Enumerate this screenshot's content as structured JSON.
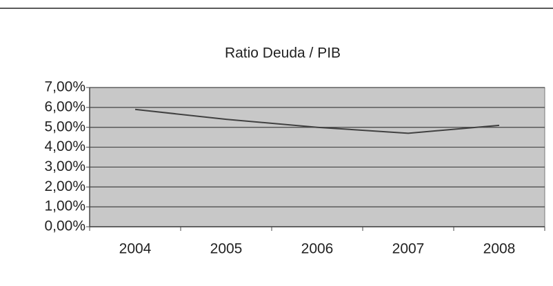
{
  "chart_data": {
    "type": "line",
    "title": "Ratio Deuda / PIB",
    "categories": [
      "2004",
      "2005",
      "2006",
      "2007",
      "2008"
    ],
    "values": [
      5.9,
      5.4,
      5.0,
      4.7,
      5.1
    ],
    "color": "#404040",
    "ylim": [
      0,
      7
    ],
    "yticks": [
      {
        "value": 0,
        "label": "0,00%"
      },
      {
        "value": 1,
        "label": "1,00%"
      },
      {
        "value": 2,
        "label": "2,00%"
      },
      {
        "value": 3,
        "label": "3,00%"
      },
      {
        "value": 4,
        "label": "4,00%"
      },
      {
        "value": 5,
        "label": "5,00%"
      },
      {
        "value": 6,
        "label": "6,00%"
      },
      {
        "value": 7,
        "label": "7,00%"
      }
    ],
    "grid": true
  }
}
